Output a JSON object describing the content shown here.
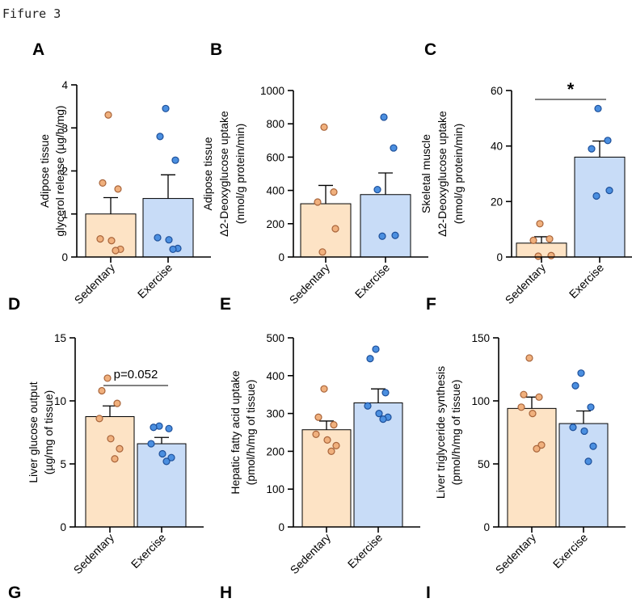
{
  "figure_title": "Fifure 3",
  "colors": {
    "sedentary_fill": "#fde3c5",
    "sedentary_dot": "#f0b07d",
    "sedentary_dot_stroke": "#a8643a",
    "exercise_fill": "#c8dcf7",
    "exercise_dot": "#4b8fe0",
    "exercise_dot_stroke": "#1d4f99"
  },
  "chart_data": [
    {
      "panel": "A",
      "type": "bar",
      "ylabel": [
        "Adipose tissue",
        "glycerol release (µg/h/mg)"
      ],
      "categories": [
        "Sedentary",
        "Exercise"
      ],
      "ylim": [
        0,
        4
      ],
      "yticks": [
        0,
        1,
        2,
        3,
        4
      ],
      "series": [
        {
          "name": "Sedentary",
          "mean": 1.0,
          "sem": 0.38,
          "points": [
            3.3,
            1.72,
            1.58,
            0.42,
            0.38,
            0.18,
            0.15
          ]
        },
        {
          "name": "Exercise",
          "mean": 1.36,
          "sem": 0.55,
          "points": [
            3.45,
            2.8,
            2.25,
            0.45,
            0.4,
            0.2,
            0.18
          ]
        }
      ],
      "annotation": null
    },
    {
      "panel": "B",
      "type": "bar",
      "ylabel": [
        "Adipose tissue",
        "Δ2-Deoxyglucose uptake",
        "(nmol/g protein/min)"
      ],
      "categories": [
        "Sedentary",
        "Exercise"
      ],
      "ylim": [
        0,
        1000
      ],
      "yticks": [
        0,
        200,
        400,
        600,
        800,
        1000
      ],
      "series": [
        {
          "name": "Sedentary",
          "mean": 320,
          "sem": 110,
          "points": [
            780,
            390,
            330,
            170,
            30
          ]
        },
        {
          "name": "Exercise",
          "mean": 375,
          "sem": 130,
          "points": [
            840,
            655,
            405,
            130,
            125
          ]
        }
      ],
      "annotation": null
    },
    {
      "panel": "C",
      "type": "bar",
      "ylabel": [
        "Skeletal muscle",
        "Δ2-Deoxyglucose uptake",
        "(nmol/g protein/min)"
      ],
      "categories": [
        "Sedentary",
        "Exercise"
      ],
      "ylim": [
        0,
        60
      ],
      "yticks": [
        0,
        20,
        40,
        60
      ],
      "series": [
        {
          "name": "Sedentary",
          "mean": 5.0,
          "sem": 2.3,
          "points": [
            12,
            6.5,
            6,
            0.5,
            0.3
          ]
        },
        {
          "name": "Exercise",
          "mean": 36,
          "sem": 5.8,
          "points": [
            53.5,
            42,
            39,
            24,
            22
          ]
        }
      ],
      "annotation": "*"
    },
    {
      "panel": "D",
      "type": "bar",
      "ylabel": [
        "Liver glucose output",
        "(µg/mg of tissue)"
      ],
      "categories": [
        "Sedentary",
        "Exercise"
      ],
      "ylim": [
        0,
        15
      ],
      "yticks": [
        0,
        5,
        10,
        15
      ],
      "series": [
        {
          "name": "Sedentary",
          "mean": 8.75,
          "sem": 0.85,
          "points": [
            11.8,
            10.8,
            9.8,
            8.6,
            7.0,
            6.2,
            5.4
          ]
        },
        {
          "name": "Exercise",
          "mean": 6.6,
          "sem": 0.5,
          "points": [
            8.0,
            7.9,
            7.8,
            6.6,
            5.8,
            5.5,
            5.2
          ]
        }
      ],
      "annotation": "p=0.052"
    },
    {
      "panel": "E",
      "type": "bar",
      "ylabel": [
        "Hepatic fatty acid uptake",
        "(pmol/h/mg of tissue)"
      ],
      "categories": [
        "Sedentary",
        "Exercise"
      ],
      "ylim": [
        0,
        500
      ],
      "yticks": [
        0,
        100,
        200,
        300,
        400,
        500
      ],
      "series": [
        {
          "name": "Sedentary",
          "mean": 257,
          "sem": 23,
          "points": [
            365,
            290,
            270,
            245,
            230,
            215,
            200
          ]
        },
        {
          "name": "Exercise",
          "mean": 328,
          "sem": 37,
          "points": [
            470,
            445,
            355,
            320,
            300,
            290,
            285
          ]
        }
      ],
      "annotation": null
    },
    {
      "panel": "F",
      "type": "bar",
      "ylabel": [
        "Liver triglyceride synthesis",
        "(pmol/h/mg of tissue)"
      ],
      "categories": [
        "Sedentary",
        "Exercise"
      ],
      "ylim": [
        0,
        150
      ],
      "yticks": [
        0,
        50,
        100,
        150
      ],
      "series": [
        {
          "name": "Sedentary",
          "mean": 94,
          "sem": 9,
          "points": [
            134,
            105,
            103,
            95,
            90,
            65,
            62
          ]
        },
        {
          "name": "Exercise",
          "mean": 82,
          "sem": 10,
          "points": [
            122,
            112,
            95,
            79,
            76,
            64,
            52
          ]
        }
      ],
      "annotation": null
    }
  ],
  "extra_panel_letters": [
    "D",
    "E",
    "F",
    "G",
    "H",
    "I"
  ]
}
